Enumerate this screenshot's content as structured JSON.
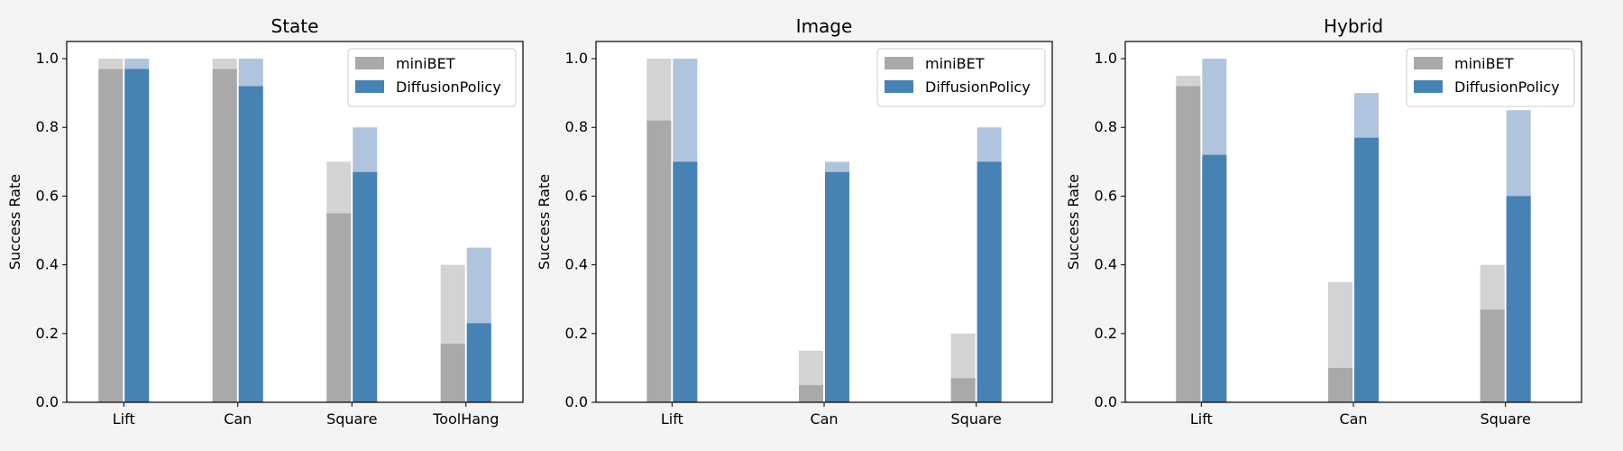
{
  "colors": {
    "miniBET_dark": "#a9a9a9",
    "miniBET_light": "#d3d3d3",
    "DiffusionPolicy_dark": "#4682b4",
    "DiffusionPolicy_light": "#b0c4de",
    "background": "#f4f4f4",
    "plot_area": "#ffffff"
  },
  "legend_labels": [
    "miniBET",
    "DiffusionPolicy"
  ],
  "chart_data": [
    {
      "type": "bar",
      "title": "State",
      "xlabel": "",
      "ylabel": "Success Rate",
      "ylim": [
        0,
        1.05
      ],
      "yticks": [
        "0.0",
        "0.2",
        "0.4",
        "0.6",
        "0.8",
        "1.0"
      ],
      "legend_position": "top-right",
      "grid": false,
      "categories": [
        "Lift",
        "Can",
        "Square",
        "ToolHang"
      ],
      "series": [
        {
          "name": "miniBET",
          "values": [
            0.97,
            0.97,
            0.55,
            0.17
          ],
          "max_values": [
            1.0,
            1.0,
            0.7,
            0.4
          ]
        },
        {
          "name": "DiffusionPolicy",
          "values": [
            0.97,
            0.92,
            0.67,
            0.23
          ],
          "max_values": [
            1.0,
            1.0,
            0.8,
            0.45
          ]
        }
      ]
    },
    {
      "type": "bar",
      "title": "Image",
      "xlabel": "",
      "ylabel": "Success Rate",
      "ylim": [
        0,
        1.05
      ],
      "yticks": [
        "0.0",
        "0.2",
        "0.4",
        "0.6",
        "0.8",
        "1.0"
      ],
      "legend_position": "top-right",
      "grid": false,
      "categories": [
        "Lift",
        "Can",
        "Square"
      ],
      "series": [
        {
          "name": "miniBET",
          "values": [
            0.82,
            0.05,
            0.07
          ],
          "max_values": [
            1.0,
            0.15,
            0.2
          ]
        },
        {
          "name": "DiffusionPolicy",
          "values": [
            0.7,
            0.67,
            0.7
          ],
          "max_values": [
            1.0,
            0.7,
            0.8
          ]
        }
      ]
    },
    {
      "type": "bar",
      "title": "Hybrid",
      "xlabel": "",
      "ylabel": "Success Rate",
      "ylim": [
        0,
        1.05
      ],
      "yticks": [
        "0.0",
        "0.2",
        "0.4",
        "0.6",
        "0.8",
        "1.0"
      ],
      "legend_position": "top-right",
      "grid": false,
      "categories": [
        "Lift",
        "Can",
        "Square"
      ],
      "series": [
        {
          "name": "miniBET",
          "values": [
            0.92,
            0.1,
            0.27
          ],
          "max_values": [
            0.95,
            0.35,
            0.4
          ]
        },
        {
          "name": "DiffusionPolicy",
          "values": [
            0.72,
            0.77,
            0.6
          ],
          "max_values": [
            1.0,
            0.9,
            0.85
          ]
        }
      ]
    }
  ]
}
